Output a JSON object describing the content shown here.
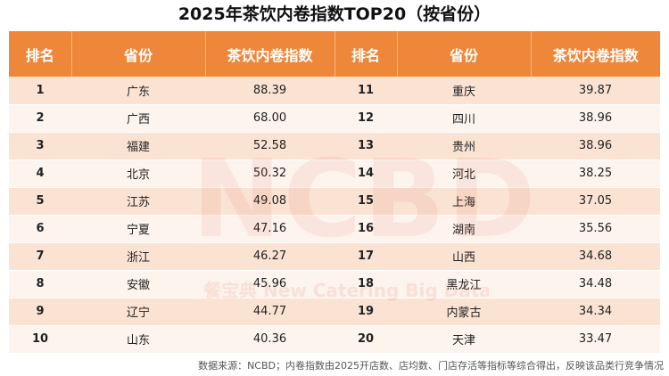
{
  "chart_data": {
    "type": "table",
    "title": "2025年茶饮内卷指数TOP20（按省份）",
    "headers": [
      "排名",
      "省份",
      "茶饮内卷指数",
      "排名",
      "省份",
      "茶饮内卷指数"
    ],
    "rows_left": [
      {
        "rank": "1",
        "province": "广东",
        "value": "88.39"
      },
      {
        "rank": "2",
        "province": "广西",
        "value": "68.00"
      },
      {
        "rank": "3",
        "province": "福建",
        "value": "52.58"
      },
      {
        "rank": "4",
        "province": "北京",
        "value": "50.32"
      },
      {
        "rank": "5",
        "province": "江苏",
        "value": "49.08"
      },
      {
        "rank": "6",
        "province": "宁夏",
        "value": "47.16"
      },
      {
        "rank": "7",
        "province": "浙江",
        "value": "46.27"
      },
      {
        "rank": "8",
        "province": "安徽",
        "value": "45.96"
      },
      {
        "rank": "9",
        "province": "辽宁",
        "value": "44.77"
      },
      {
        "rank": "10",
        "province": "山东",
        "value": "40.36"
      }
    ],
    "rows_right": [
      {
        "rank": "11",
        "province": "重庆",
        "value": "39.87"
      },
      {
        "rank": "12",
        "province": "四川",
        "value": "38.96"
      },
      {
        "rank": "13",
        "province": "贵州",
        "value": "38.96"
      },
      {
        "rank": "14",
        "province": "河北",
        "value": "38.25"
      },
      {
        "rank": "15",
        "province": "上海",
        "value": "37.05"
      },
      {
        "rank": "16",
        "province": "湖南",
        "value": "35.56"
      },
      {
        "rank": "17",
        "province": "山西",
        "value": "34.68"
      },
      {
        "rank": "18",
        "province": "黑龙江",
        "value": "34.48"
      },
      {
        "rank": "19",
        "province": "内蒙古",
        "value": "34.34"
      },
      {
        "rank": "20",
        "province": "天津",
        "value": "33.47"
      }
    ],
    "source": "数据来源：NCBD；内卷指数由2025开店数、店均数、门店存活等指标等综合得出，反映该品类行竞争情况"
  },
  "watermark": {
    "logo": "NCBD",
    "subtitle": "餐宝典 New Catering Big Data",
    "brand": "餐宝典"
  },
  "colors": {
    "header_bg": "#ee8739",
    "row_odd": "#fbe3d3",
    "row_even": "#fdf4ee"
  }
}
